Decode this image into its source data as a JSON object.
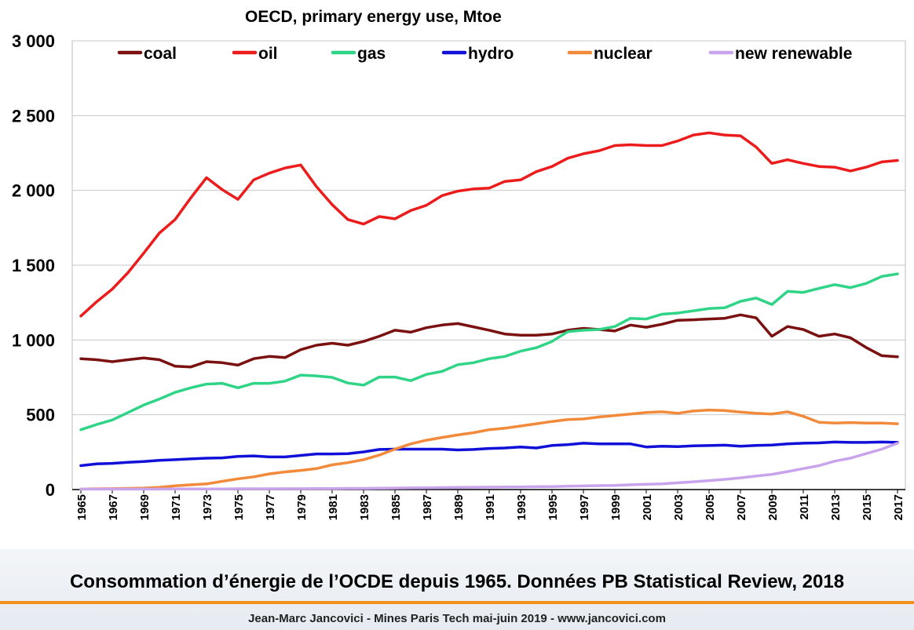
{
  "chart_data": {
    "type": "line",
    "title": "OECD, primary energy use, Mtoe",
    "xlabel": "",
    "ylabel": "",
    "ylim": [
      0,
      3000
    ],
    "xlim": [
      1965,
      2017
    ],
    "y_ticks": [
      0,
      500,
      1000,
      1500,
      2000,
      2500,
      3000
    ],
    "y_tick_labels": [
      "0",
      "500",
      "1 000",
      "1 500",
      "2 000",
      "2 500",
      "3 000"
    ],
    "x_tick_labels": [
      "1965",
      "1967",
      "1969",
      "1971",
      "1973",
      "1975",
      "1977",
      "1979",
      "1981",
      "1983",
      "1985",
      "1987",
      "1989",
      "1991",
      "1993",
      "1995",
      "1997",
      "1999",
      "2001",
      "2003",
      "2005",
      "2007",
      "2009",
      "2011",
      "2013",
      "2015",
      "2017"
    ],
    "grid": "horizontal",
    "legend_position": "top",
    "x": [
      1965,
      1966,
      1967,
      1968,
      1969,
      1970,
      1971,
      1972,
      1973,
      1974,
      1975,
      1976,
      1977,
      1978,
      1979,
      1980,
      1981,
      1982,
      1983,
      1984,
      1985,
      1986,
      1987,
      1988,
      1989,
      1990,
      1991,
      1992,
      1993,
      1994,
      1995,
      1996,
      1997,
      1998,
      1999,
      2000,
      2001,
      2002,
      2003,
      2004,
      2005,
      2006,
      2007,
      2008,
      2009,
      2010,
      2011,
      2012,
      2013,
      2014,
      2015,
      2016,
      2017
    ],
    "series": [
      {
        "name": "coal",
        "color": "#7b1010",
        "values": [
          875,
          868,
          855,
          868,
          880,
          868,
          825,
          820,
          855,
          848,
          832,
          875,
          890,
          882,
          935,
          965,
          978,
          965,
          990,
          1025,
          1065,
          1052,
          1082,
          1100,
          1110,
          1088,
          1065,
          1040,
          1032,
          1032,
          1040,
          1065,
          1078,
          1070,
          1060,
          1100,
          1085,
          1105,
          1132,
          1135,
          1140,
          1145,
          1168,
          1148,
          1025,
          1090,
          1070,
          1025,
          1040,
          1015,
          950,
          895,
          888
        ]
      },
      {
        "name": "oil",
        "color": "#ec1c1c",
        "values": [
          1160,
          1255,
          1340,
          1450,
          1580,
          1715,
          1805,
          1950,
          2085,
          2005,
          1940,
          2070,
          2115,
          2150,
          2170,
          2025,
          1905,
          1805,
          1775,
          1825,
          1810,
          1865,
          1900,
          1965,
          1995,
          2010,
          2015,
          2060,
          2070,
          2125,
          2160,
          2215,
          2245,
          2265,
          2300,
          2305,
          2300,
          2300,
          2330,
          2370,
          2385,
          2370,
          2365,
          2290,
          2180,
          2205,
          2180,
          2160,
          2155,
          2130,
          2155,
          2190,
          2200
        ]
      },
      {
        "name": "gas",
        "color": "#2fd487",
        "values": [
          400,
          435,
          465,
          515,
          565,
          605,
          650,
          680,
          705,
          710,
          680,
          710,
          710,
          725,
          765,
          760,
          750,
          712,
          698,
          752,
          752,
          728,
          770,
          790,
          835,
          848,
          875,
          890,
          925,
          948,
          990,
          1055,
          1065,
          1070,
          1090,
          1145,
          1140,
          1172,
          1180,
          1195,
          1210,
          1215,
          1258,
          1280,
          1237,
          1325,
          1318,
          1345,
          1370,
          1350,
          1378,
          1425,
          1442
        ]
      },
      {
        "name": "hydro",
        "color": "#1010d8",
        "values": [
          160,
          172,
          175,
          182,
          188,
          195,
          200,
          205,
          210,
          212,
          222,
          225,
          218,
          218,
          228,
          238,
          238,
          240,
          252,
          268,
          270,
          270,
          270,
          270,
          265,
          268,
          275,
          278,
          285,
          278,
          295,
          300,
          310,
          305,
          305,
          305,
          285,
          290,
          287,
          292,
          294,
          297,
          290,
          295,
          298,
          305,
          310,
          312,
          318,
          315,
          315,
          318,
          315
        ]
      },
      {
        "name": "nuclear",
        "color": "#f28a3c",
        "values": [
          3,
          5,
          6,
          8,
          10,
          15,
          25,
          32,
          38,
          55,
          72,
          85,
          105,
          118,
          128,
          140,
          165,
          180,
          200,
          230,
          270,
          305,
          330,
          348,
          365,
          380,
          400,
          410,
          425,
          440,
          455,
          468,
          472,
          485,
          495,
          505,
          515,
          520,
          510,
          525,
          532,
          528,
          518,
          510,
          505,
          520,
          490,
          450,
          445,
          448,
          445,
          445,
          440
        ]
      },
      {
        "name": "new renewable",
        "color": "#c8a4ec",
        "values": [
          3,
          3,
          3,
          3,
          3,
          3,
          4,
          4,
          4,
          4,
          5,
          5,
          5,
          6,
          6,
          7,
          7,
          8,
          8,
          9,
          10,
          11,
          12,
          13,
          14,
          15,
          16,
          17,
          18,
          19,
          20,
          22,
          24,
          26,
          28,
          32,
          35,
          38,
          45,
          52,
          60,
          68,
          78,
          90,
          102,
          120,
          140,
          160,
          190,
          210,
          240,
          270,
          310
        ]
      }
    ]
  },
  "footer": {
    "caption": "Consommation d’énergie de l’OCDE depuis 1965. Données PB Statistical Review, 2018",
    "credit": "Jean-Marc Jancovici - Mines Paris Tech mai-juin 2019 - www.jancovici.com"
  }
}
